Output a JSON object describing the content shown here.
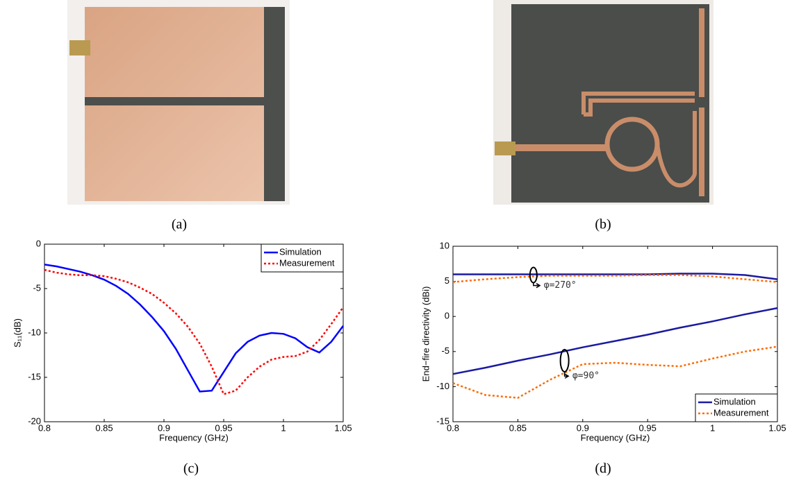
{
  "captions": [
    "(a)",
    "(b)",
    "(c)",
    "(d)"
  ],
  "chart_data": [
    {
      "type": "line",
      "xlabel": "Frequency (GHz)",
      "ylabel": "S₁₁(dB)",
      "x": [
        0.8,
        0.81,
        0.82,
        0.83,
        0.84,
        0.85,
        0.86,
        0.87,
        0.88,
        0.89,
        0.9,
        0.91,
        0.92,
        0.93,
        0.94,
        0.95,
        0.96,
        0.97,
        0.98,
        0.99,
        1.0,
        1.01,
        1.02,
        1.03,
        1.04,
        1.05
      ],
      "series": [
        {
          "name": "Simulation",
          "color": "#0000ff",
          "dashed": false,
          "values": [
            -2.3,
            -2.5,
            -2.8,
            -3.1,
            -3.5,
            -4.0,
            -4.7,
            -5.6,
            -6.8,
            -8.2,
            -9.8,
            -11.8,
            -14.2,
            -16.6,
            -16.5,
            -14.4,
            -12.3,
            -11.0,
            -10.3,
            -10.0,
            -10.1,
            -10.6,
            -11.6,
            -12.2,
            -11.0,
            -9.2
          ]
        },
        {
          "name": "Measurement",
          "color": "#ff0000",
          "dashed": true,
          "values": [
            -2.9,
            -3.2,
            -3.4,
            -3.5,
            -3.5,
            -3.6,
            -3.9,
            -4.3,
            -4.9,
            -5.6,
            -6.6,
            -7.8,
            -9.3,
            -11.2,
            -13.8,
            -16.9,
            -16.5,
            -15.0,
            -13.8,
            -13.0,
            -12.7,
            -12.6,
            -12.1,
            -10.8,
            -9.0,
            -7.1
          ]
        }
      ],
      "xlim": [
        0.8,
        1.05
      ],
      "xticks": [
        0.8,
        0.85,
        0.9,
        0.95,
        1,
        1.05
      ],
      "ylim": [
        -20,
        0
      ],
      "yticks": [
        -20,
        -15,
        -10,
        -5,
        0
      ],
      "legend": "upper right"
    },
    {
      "type": "line",
      "xlabel": "Frequency (GHz)",
      "ylabel": "End−fire directivity (dBi)",
      "x": [
        0.8,
        0.825,
        0.85,
        0.875,
        0.9,
        0.925,
        0.95,
        0.975,
        1.0,
        1.025,
        1.05
      ],
      "series": [
        {
          "name": "Simulation",
          "color": "#1a1aa0",
          "dashed": false,
          "values": [
            6.0,
            6.0,
            6.0,
            6.0,
            6.0,
            6.0,
            6.0,
            6.1,
            6.1,
            5.9,
            5.3
          ]
        },
        {
          "name": "Measurement",
          "color": "#ff6a00",
          "dashed": true,
          "values": [
            4.9,
            5.3,
            5.6,
            5.8,
            5.8,
            5.8,
            5.9,
            5.9,
            5.7,
            5.3,
            4.9
          ]
        },
        {
          "color": "#1a1aa0",
          "dashed": false,
          "values": [
            -8.2,
            -7.3,
            -6.3,
            -5.4,
            -4.4,
            -3.5,
            -2.6,
            -1.6,
            -0.7,
            0.3,
            1.2
          ]
        },
        {
          "color": "#ff6a00",
          "dashed": true,
          "values": [
            -9.5,
            -11.2,
            -11.6,
            -9.0,
            -6.8,
            -6.6,
            -6.9,
            -7.1,
            -6.0,
            -5.0,
            -4.3
          ]
        }
      ],
      "annotations": [
        "φ=270°",
        "φ=90°"
      ],
      "xlim": [
        0.8,
        1.05
      ],
      "xticks": [
        0.8,
        0.85,
        0.9,
        0.95,
        1,
        1.05
      ],
      "ylim": [
        -15,
        10
      ],
      "yticks": [
        -15,
        -10,
        -5,
        0,
        5,
        10
      ],
      "legend": "lower right"
    }
  ]
}
